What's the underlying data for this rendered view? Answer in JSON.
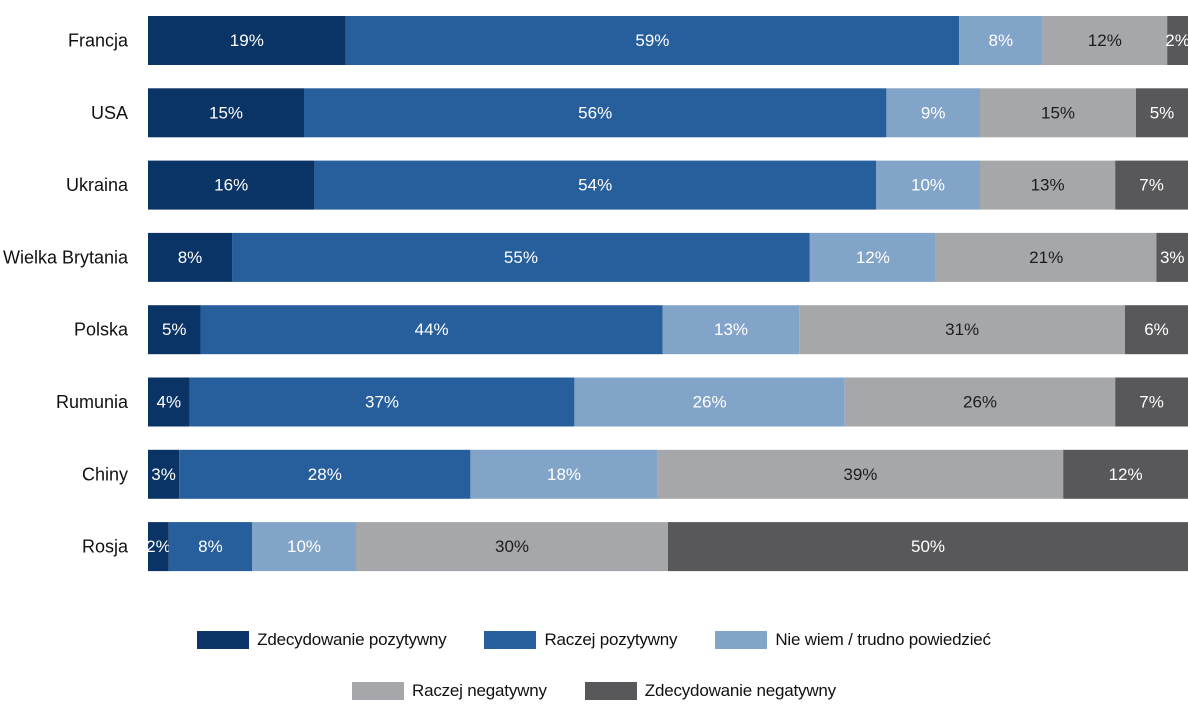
{
  "chart_data": {
    "type": "bar",
    "orientation": "horizontal",
    "stacked": true,
    "normalized_percent": true,
    "categories": [
      "Francja",
      "USA",
      "Ukraina",
      "Wielka Brytania",
      "Polska",
      "Rumunia",
      "Chiny",
      "Rosja"
    ],
    "series": [
      {
        "name": "Zdecydowanie pozytywny",
        "color": "#0b3466",
        "values": [
          19,
          15,
          16,
          8,
          5,
          4,
          3,
          2
        ]
      },
      {
        "name": "Raczej pozytywny",
        "color": "#275f9d",
        "values": [
          59,
          56,
          54,
          55,
          44,
          37,
          28,
          8
        ]
      },
      {
        "name": "Nie wiem / trudno powiedzieć",
        "color": "#83a4c9",
        "values": [
          8,
          9,
          10,
          12,
          13,
          26,
          18,
          10
        ]
      },
      {
        "name": "Raczej negatywny",
        "color": "#a6a7aa",
        "values": [
          12,
          15,
          13,
          21,
          31,
          26,
          39,
          30
        ]
      },
      {
        "name": "Zdecydowanie negatywny",
        "color": "#58585a",
        "values": [
          2,
          5,
          7,
          3,
          6,
          7,
          12,
          50
        ]
      }
    ],
    "value_suffix": "%",
    "data_labels": true,
    "legend_position": "bottom",
    "grid": false,
    "title": "",
    "xlabel": "",
    "ylabel": ""
  }
}
